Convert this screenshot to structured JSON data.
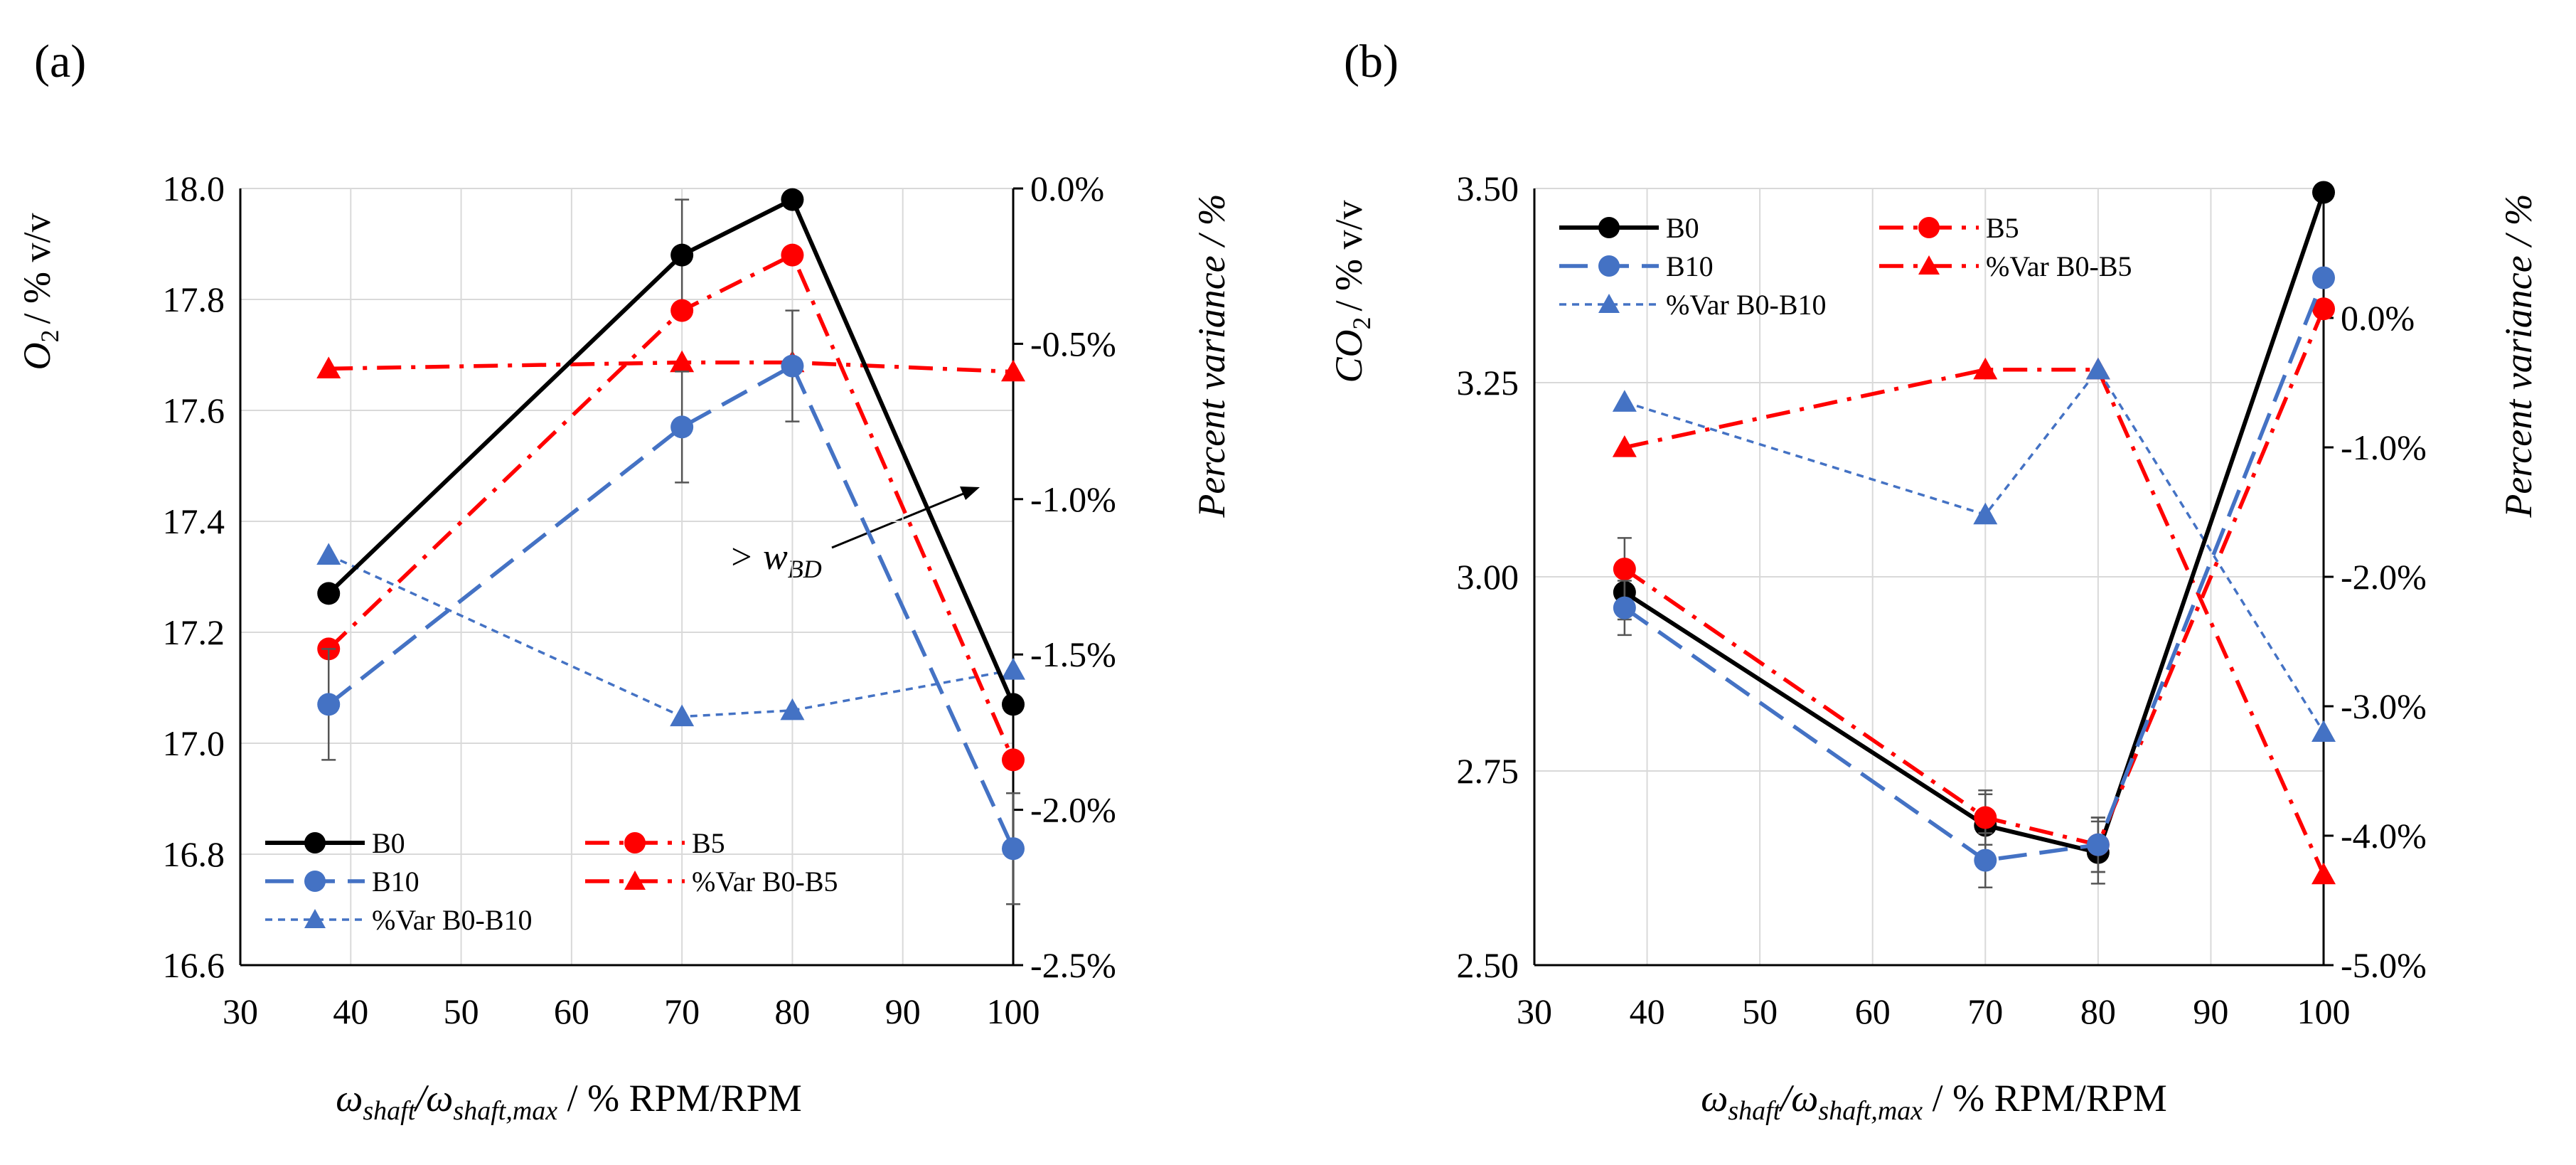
{
  "figure": {
    "x_axis_title": {
      "omega": "ω",
      "shaft_sub": "shaft",
      "slash": "/ω",
      "shaft_max_sub": "shaft,max",
      "unit": " / % RPM/RPM"
    },
    "right_axis_title": "Percent variance / %"
  },
  "chart_data": [
    {
      "panel_label": "(a)",
      "type": "line",
      "y_axis_title": {
        "symbol": "O",
        "subscript": "2",
        "unit": "/ % v/v"
      },
      "x": [
        38,
        70,
        80,
        100
      ],
      "xlim": [
        30,
        100
      ],
      "xticks": [
        "30",
        "40",
        "50",
        "60",
        "70",
        "80",
        "90",
        "100"
      ],
      "ylim": [
        16.6,
        18.0
      ],
      "yticks": [
        "16.6",
        "16.8",
        "17.0",
        "17.2",
        "17.4",
        "17.6",
        "17.8",
        "18.0"
      ],
      "y2lim": [
        -2.5,
        0.0
      ],
      "y2ticks": [
        "-2.5%",
        "-2.0%",
        "-1.5%",
        "-1.0%",
        "-0.5%",
        "0.0%"
      ],
      "grid": true,
      "series": [
        {
          "name": "B0",
          "axis": "left",
          "color": "#000000",
          "marker": "circle",
          "dash": "solid",
          "values": [
            17.27,
            17.88,
            17.98,
            17.07
          ],
          "errors": [
            0.0,
            0.1,
            0.0,
            0.0
          ]
        },
        {
          "name": "B5",
          "axis": "left",
          "color": "#ff0000",
          "marker": "circle",
          "dash": "dashdot",
          "values": [
            17.17,
            17.78,
            17.88,
            16.97
          ],
          "errors": [
            0.0,
            0.0,
            0.0,
            0.0
          ]
        },
        {
          "name": "B10",
          "axis": "left",
          "color": "#4472c4",
          "marker": "circle",
          "dash": "longdash",
          "values": [
            17.07,
            17.57,
            17.68,
            16.81
          ],
          "errors": [
            0.1,
            0.1,
            0.1,
            0.1
          ]
        },
        {
          "name": "%Var B0-B5",
          "axis": "right",
          "color": "#ff0000",
          "marker": "triangle",
          "dash": "dashdot",
          "values": [
            -0.58,
            -0.56,
            -0.56,
            -0.59
          ],
          "errors": [
            0,
            0,
            0,
            0
          ]
        },
        {
          "name": "%Var B0-B10",
          "axis": "right",
          "color": "#4472c4",
          "marker": "triangle",
          "dash": "dotted",
          "values": [
            -1.18,
            -1.7,
            -1.68,
            -1.55
          ],
          "errors": [
            0,
            0,
            0,
            0
          ]
        }
      ],
      "legend_position": "bottom-left",
      "annotation": {
        "text": "> w",
        "subscript": "BD"
      }
    },
    {
      "panel_label": "(b)",
      "type": "line",
      "y_axis_title": {
        "symbol": "CO",
        "subscript": "2",
        "unit": "/ % v/v"
      },
      "x": [
        38,
        70,
        80,
        100
      ],
      "xlim": [
        30,
        100
      ],
      "xticks": [
        "30",
        "40",
        "50",
        "60",
        "70",
        "80",
        "90",
        "100"
      ],
      "ylim": [
        2.5,
        3.5
      ],
      "yticks": [
        "2.50",
        "2.75",
        "3.00",
        "3.25",
        "3.50"
      ],
      "y2lim": [
        -5.0,
        1.0
      ],
      "y2ticks": [
        "-5.0%",
        "-4.0%",
        "-3.0%",
        "-2.0%",
        "-1.0%",
        "0.0%"
      ],
      "grid": true,
      "series": [
        {
          "name": "B0",
          "axis": "left",
          "color": "#000000",
          "marker": "circle",
          "dash": "solid",
          "values": [
            2.98,
            2.68,
            2.645,
            3.495
          ],
          "errors": [
            0.035,
            0.04,
            0.04,
            0.0
          ]
        },
        {
          "name": "B5",
          "axis": "left",
          "color": "#ff0000",
          "marker": "circle",
          "dash": "dashdot",
          "values": [
            3.01,
            2.69,
            2.655,
            3.345
          ],
          "errors": [
            0.04,
            0.035,
            0.035,
            0.0
          ]
        },
        {
          "name": "B10",
          "axis": "left",
          "color": "#4472c4",
          "marker": "circle",
          "dash": "longdash",
          "values": [
            2.96,
            2.635,
            2.655,
            3.385
          ],
          "errors": [
            0.035,
            0.035,
            0.035,
            0.0
          ]
        },
        {
          "name": "%Var B0-B5",
          "axis": "right",
          "color": "#ff0000",
          "marker": "triangle",
          "dash": "dashdot",
          "values": [
            -1.0,
            -0.4,
            -0.4,
            -4.3
          ],
          "errors": [
            0,
            0,
            0,
            0
          ]
        },
        {
          "name": "%Var B0-B10",
          "axis": "right",
          "color": "#4472c4",
          "marker": "triangle",
          "dash": "dotted",
          "values": [
            -0.65,
            -1.52,
            -0.4,
            -3.2
          ],
          "errors": [
            0,
            0,
            0,
            0
          ]
        }
      ],
      "legend_position": "top-left"
    }
  ]
}
